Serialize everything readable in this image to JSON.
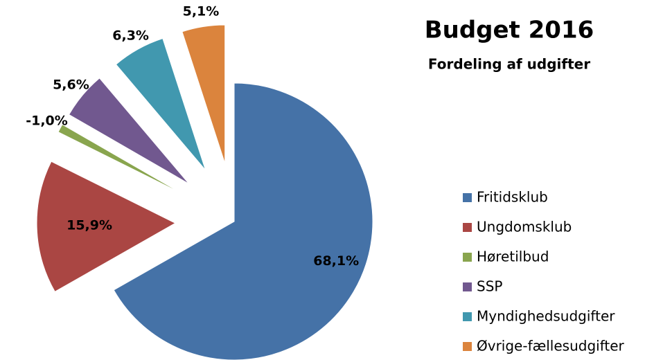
{
  "chart_data": {
    "type": "pie",
    "title": "Budget 2016",
    "subtitle": "Fordeling af udgifter",
    "categories": [
      "Fritidsklub",
      "Ungdomsklub",
      "Høretilbud",
      "SSP",
      "Myndighedsudgifter",
      "Øvrige-fællesudgifter"
    ],
    "values": [
      68.1,
      15.9,
      -1.0,
      5.6,
      6.3,
      5.1
    ],
    "value_labels": [
      "68,1%",
      "15,9%",
      "-1,0%",
      "5,6%",
      "6,3%",
      "5,1%"
    ],
    "colors": [
      "#4572a7",
      "#aa4643",
      "#89a54e",
      "#71588f",
      "#4198af",
      "#db843d"
    ],
    "legend": "right"
  }
}
